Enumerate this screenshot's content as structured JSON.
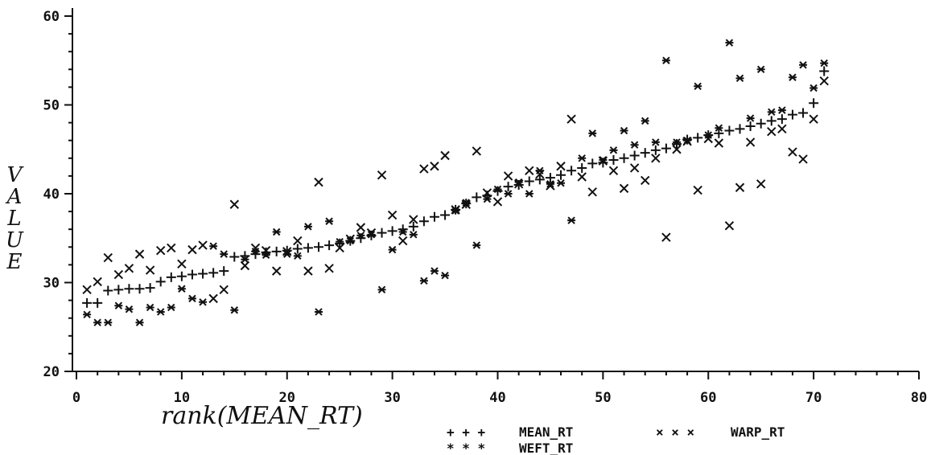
{
  "chart_data": {
    "type": "scatter",
    "xlabel": "rank(MEAN_RT)",
    "ylabel": "VALUE",
    "xlim": [
      0,
      80
    ],
    "ylim": [
      20,
      60
    ],
    "xticks": [
      0,
      10,
      20,
      30,
      40,
      50,
      60,
      70,
      80
    ],
    "yticks": [
      20,
      30,
      40,
      50,
      60
    ],
    "grid": false,
    "legend_position": "bottom",
    "series": [
      {
        "name": "MEAN_RT",
        "marker": "plus",
        "x": [
          1,
          2,
          3,
          4,
          5,
          6,
          7,
          8,
          9,
          10,
          11,
          12,
          13,
          14,
          15,
          16,
          17,
          18,
          19,
          20,
          21,
          22,
          23,
          24,
          25,
          26,
          27,
          28,
          29,
          30,
          31,
          32,
          33,
          34,
          35,
          36,
          37,
          38,
          39,
          40,
          41,
          42,
          43,
          44,
          45,
          46,
          47,
          48,
          49,
          50,
          51,
          52,
          53,
          54,
          55,
          56,
          57,
          58,
          59,
          60,
          61,
          62,
          63,
          64,
          65,
          66,
          67,
          68,
          69,
          70,
          71
        ],
        "y": [
          27.7,
          27.7,
          29.1,
          29.2,
          29.3,
          29.3,
          29.4,
          30.1,
          30.6,
          30.7,
          30.9,
          31.0,
          31.1,
          31.3,
          32.9,
          33.0,
          33.2,
          33.4,
          33.5,
          33.6,
          33.8,
          33.9,
          34.0,
          34.2,
          34.4,
          34.7,
          35.0,
          35.3,
          35.6,
          35.8,
          36.0,
          36.3,
          36.9,
          37.4,
          37.6,
          38.2,
          38.9,
          39.6,
          39.8,
          40.3,
          40.8,
          41.0,
          41.4,
          41.6,
          41.8,
          42.1,
          42.6,
          42.9,
          43.4,
          43.5,
          43.8,
          44.0,
          44.3,
          44.6,
          44.9,
          45.1,
          45.6,
          46.1,
          46.3,
          46.6,
          46.8,
          47.1,
          47.3,
          47.6,
          47.9,
          48.2,
          48.4,
          48.9,
          49.1,
          50.2,
          53.8
        ]
      },
      {
        "name": "WARP_RT",
        "marker": "x",
        "x": [
          1,
          2,
          3,
          4,
          5,
          6,
          7,
          8,
          9,
          10,
          11,
          12,
          13,
          14,
          15,
          16,
          17,
          18,
          19,
          20,
          21,
          22,
          23,
          24,
          25,
          26,
          27,
          28,
          29,
          30,
          31,
          32,
          33,
          34,
          35,
          36,
          37,
          38,
          39,
          40,
          41,
          42,
          43,
          44,
          45,
          46,
          47,
          48,
          49,
          50,
          51,
          52,
          53,
          54,
          55,
          56,
          57,
          58,
          59,
          60,
          61,
          62,
          63,
          64,
          65,
          66,
          67,
          68,
          69,
          70,
          71
        ],
        "y": [
          29.2,
          30.1,
          32.8,
          30.9,
          31.6,
          33.2,
          31.4,
          33.6,
          33.9,
          32.1,
          33.7,
          34.2,
          28.2,
          29.2,
          38.8,
          31.9,
          33.9,
          33.6,
          31.3,
          33.5,
          34.7,
          31.3,
          41.3,
          31.6,
          33.9,
          34.9,
          36.2,
          35.6,
          42.1,
          37.6,
          34.7,
          37.1,
          42.8,
          43.1,
          44.3,
          38.2,
          38.8,
          44.8,
          40.1,
          39.1,
          42.0,
          41.1,
          42.6,
          42.2,
          40.9,
          43.1,
          48.4,
          41.9,
          40.2,
          43.7,
          42.6,
          40.6,
          42.9,
          41.5,
          44.0,
          35.1,
          45.0,
          45.9,
          40.4,
          46.2,
          45.7,
          36.4,
          40.7,
          45.8,
          41.1,
          47.0,
          47.3,
          44.7,
          43.9,
          48.4,
          52.7
        ]
      },
      {
        "name": "WEFT_RT",
        "marker": "asterisk",
        "x": [
          1,
          2,
          3,
          4,
          5,
          6,
          7,
          8,
          9,
          10,
          11,
          12,
          13,
          14,
          15,
          16,
          17,
          18,
          19,
          20,
          21,
          22,
          23,
          24,
          25,
          26,
          27,
          28,
          29,
          30,
          31,
          32,
          33,
          34,
          35,
          36,
          37,
          38,
          39,
          40,
          41,
          42,
          43,
          44,
          45,
          46,
          47,
          48,
          49,
          50,
          51,
          52,
          53,
          54,
          55,
          56,
          57,
          58,
          59,
          60,
          61,
          62,
          63,
          64,
          65,
          66,
          67,
          68,
          69,
          70,
          71
        ],
        "y": [
          26.4,
          25.5,
          25.5,
          27.4,
          27.0,
          25.5,
          27.2,
          26.7,
          27.2,
          29.3,
          28.2,
          27.8,
          34.1,
          33.2,
          26.9,
          32.6,
          33.5,
          33.1,
          35.7,
          33.2,
          33.0,
          36.3,
          26.7,
          36.9,
          34.6,
          34.7,
          35.3,
          35.4,
          29.2,
          33.7,
          35.7,
          35.4,
          30.2,
          31.3,
          30.8,
          38.1,
          39.0,
          34.2,
          39.4,
          40.5,
          40.0,
          41.3,
          40.0,
          42.6,
          41.1,
          41.2,
          37.0,
          44.0,
          46.8,
          43.8,
          44.9,
          47.1,
          45.5,
          48.2,
          45.8,
          55.0,
          45.8,
          46.0,
          52.1,
          46.6,
          47.4,
          57.0,
          53.0,
          48.5,
          54.0,
          49.2,
          49.4,
          53.1,
          54.5,
          51.9,
          54.7
        ]
      }
    ],
    "legend": [
      {
        "name": "MEAN_RT",
        "symbol": "+ + +"
      },
      {
        "name": "WARP_RT",
        "symbol": "× × ×"
      },
      {
        "name": "WEFT_RT",
        "symbol": "* * *"
      }
    ]
  }
}
